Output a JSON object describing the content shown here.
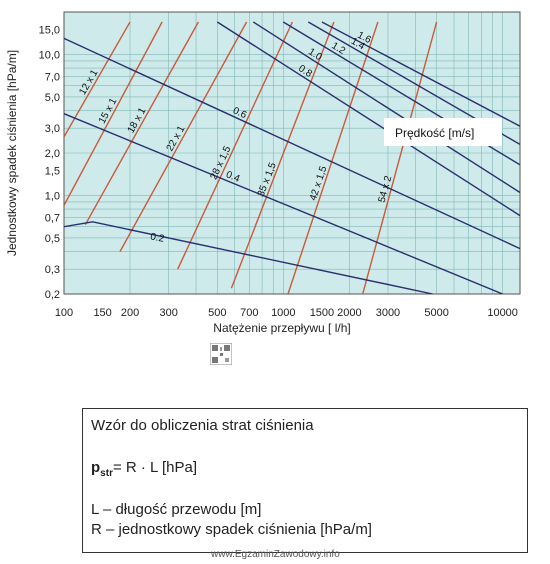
{
  "chart_data": {
    "type": "line",
    "xscale": "log",
    "yscale": "log",
    "xlim": [
      100,
      12000
    ],
    "ylim": [
      0.2,
      20
    ],
    "xlabel": "Natężenie przepływu [ l/h]",
    "ylabel": "Jednostkowy spadek ciśnienia [hPa/m]",
    "x_ticks": [
      {
        "value": 100,
        "label": "100"
      },
      {
        "value": 150,
        "label": "150"
      },
      {
        "value": 200,
        "label": "200"
      },
      {
        "value": 300,
        "label": "300"
      },
      {
        "value": 500,
        "label": "500"
      },
      {
        "value": 700,
        "label": "700"
      },
      {
        "value": 1000,
        "label": "1000"
      },
      {
        "value": 1500,
        "label": "1500"
      },
      {
        "value": 2000,
        "label": "2000"
      },
      {
        "value": 3000,
        "label": "3000"
      },
      {
        "value": 5000,
        "label": "5000"
      },
      {
        "value": 10000,
        "label": "10000"
      }
    ],
    "y_ticks": [
      {
        "value": 0.2,
        "label": "0,2"
      },
      {
        "value": 0.3,
        "label": "0,3"
      },
      {
        "value": 0.5,
        "label": "0,5"
      },
      {
        "value": 0.7,
        "label": "0,7"
      },
      {
        "value": 1.0,
        "label": "1,0"
      },
      {
        "value": 1.5,
        "label": "1,5"
      },
      {
        "value": 2.0,
        "label": "2,0"
      },
      {
        "value": 3.0,
        "label": "3,0"
      },
      {
        "value": 5.0,
        "label": "5,0"
      },
      {
        "value": 7.0,
        "label": "7,0"
      },
      {
        "value": 10.0,
        "label": "10,0"
      },
      {
        "value": 15.0,
        "label": "15,0"
      }
    ],
    "grid": true,
    "pipe_lines": [
      {
        "name": "12 x 1",
        "points": [
          [
            100,
            2.6
          ],
          [
            200,
            17
          ]
        ]
      },
      {
        "name": "15 x 1",
        "points": [
          [
            100,
            0.85
          ],
          [
            280,
            17
          ]
        ]
      },
      {
        "name": "18 x 1",
        "points": [
          [
            125,
            0.62
          ],
          [
            410,
            17
          ]
        ]
      },
      {
        "name": "22 x 1",
        "points": [
          [
            180,
            0.4
          ],
          [
            680,
            17
          ]
        ]
      },
      {
        "name": "28 x 1,5",
        "points": [
          [
            330,
            0.3
          ],
          [
            1100,
            17
          ]
        ]
      },
      {
        "name": "35 x 1,5",
        "points": [
          [
            580,
            0.22
          ],
          [
            1700,
            17
          ]
        ]
      },
      {
        "name": "42 x 1,5",
        "points": [
          [
            1050,
            0.2
          ],
          [
            2700,
            17
          ]
        ]
      },
      {
        "name": "54 x 2",
        "points": [
          [
            2300,
            0.2
          ],
          [
            5000,
            17
          ]
        ]
      }
    ],
    "velocity_lines": [
      {
        "name": "1.6",
        "points": [
          [
            1500,
            17
          ],
          [
            12000,
            3.1
          ]
        ]
      },
      {
        "name": "1.4",
        "points": [
          [
            1300,
            17
          ],
          [
            12000,
            2.3
          ]
        ]
      },
      {
        "name": "1.2",
        "points": [
          [
            1000,
            17
          ],
          [
            12000,
            1.65
          ]
        ]
      },
      {
        "name": "1.0",
        "points": [
          [
            730,
            17
          ],
          [
            12000,
            1.05
          ]
        ]
      },
      {
        "name": "0.8",
        "points": [
          [
            500,
            17
          ],
          [
            12000,
            0.72
          ]
        ]
      },
      {
        "name": "0.6",
        "points": [
          [
            100,
            13
          ],
          [
            12000,
            0.42
          ]
        ]
      },
      {
        "name": "0.4",
        "points": [
          [
            100,
            3.8
          ],
          [
            10000,
            0.2
          ]
        ]
      },
      {
        "name": "0.2",
        "points": [
          [
            100,
            0.6
          ],
          [
            135,
            0.65
          ],
          [
            4800,
            0.2
          ]
        ]
      }
    ],
    "legend": {
      "label": "Prędkość [m/s]",
      "placement": "right"
    },
    "colors": {
      "background": "#cfeaea",
      "grid": "#7fb6b6",
      "pipe_line": "#c85a3a",
      "velocity_line": "#2a2f6e"
    }
  },
  "formula_box": {
    "title": "Wzór do obliczenia strat ciśnienia",
    "eq_symbol": "p",
    "eq_sub": "str",
    "eq_rest": "= R · L  [hPa]",
    "line1": "L – długość przewodu [m]",
    "line2": "R – jednostkowy spadek ciśnienia [hPa/m]"
  },
  "watermark": "www.EgzaminZawodowy.info"
}
